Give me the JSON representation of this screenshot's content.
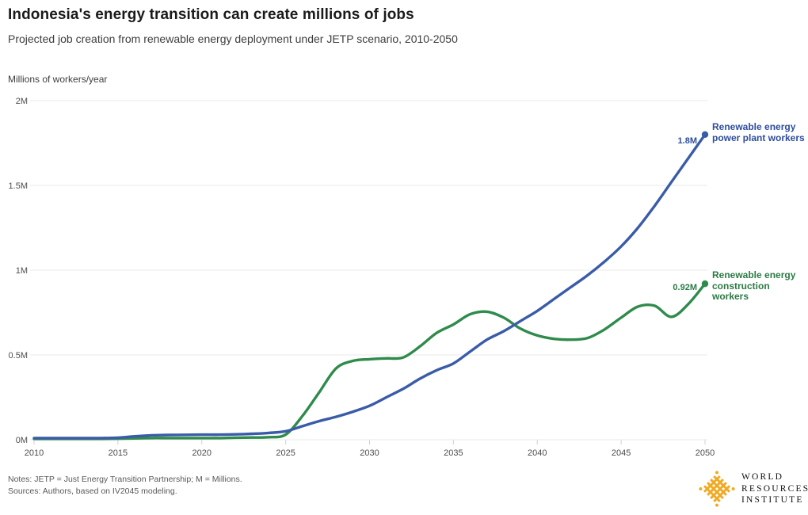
{
  "header": {
    "title": "Indonesia's energy transition can create millions of jobs",
    "subtitle": "Projected job creation from renewable energy deployment under JETP scenario, 2010-2050"
  },
  "chart_data": {
    "type": "line",
    "title": "Indonesia's energy transition can create millions of jobs",
    "subtitle": "Projected job creation from renewable energy deployment under JETP scenario, 2010-2050",
    "unit_label": "Millions of workers/year",
    "xlim": [
      2010,
      2050
    ],
    "ylim": [
      0,
      2
    ],
    "grid": "horizontal",
    "legend_position": "right-of-line-ends",
    "xticks": [
      2010,
      2015,
      2020,
      2025,
      2030,
      2035,
      2040,
      2045,
      2050
    ],
    "yticks": {
      "values": [
        0,
        0.5,
        1,
        1.5,
        2
      ],
      "labels": [
        "0M",
        "0.5M",
        "1M",
        "1.5M",
        "2M"
      ]
    },
    "x": [
      2010,
      2011,
      2012,
      2013,
      2014,
      2015,
      2016,
      2017,
      2018,
      2019,
      2020,
      2021,
      2022,
      2023,
      2024,
      2025,
      2026,
      2027,
      2028,
      2029,
      2030,
      2031,
      2032,
      2033,
      2034,
      2035,
      2036,
      2037,
      2038,
      2039,
      2040,
      2041,
      2042,
      2043,
      2044,
      2045,
      2046,
      2047,
      2048,
      2049,
      2050
    ],
    "series": [
      {
        "name": "Renewable energy power plant workers",
        "label_lines": [
          "Renewable energy",
          "power plant workers"
        ],
        "color": "#3a5ca8",
        "end_label": "1.8M",
        "end_value": 1.8,
        "values": [
          0.01,
          0.01,
          0.01,
          0.01,
          0.01,
          0.012,
          0.02,
          0.026,
          0.028,
          0.029,
          0.03,
          0.03,
          0.032,
          0.035,
          0.04,
          0.05,
          0.08,
          0.11,
          0.135,
          0.165,
          0.2,
          0.25,
          0.3,
          0.36,
          0.41,
          0.45,
          0.52,
          0.59,
          0.64,
          0.7,
          0.76,
          0.83,
          0.9,
          0.97,
          1.05,
          1.14,
          1.25,
          1.38,
          1.52,
          1.66,
          1.8
        ]
      },
      {
        "name": "Renewable energy construction workers",
        "label_lines": [
          "Renewable energy",
          "construction workers"
        ],
        "color": "#2f8b4c",
        "end_label": "0.92M",
        "end_value": 0.92,
        "values": [
          0.005,
          0.005,
          0.005,
          0.005,
          0.005,
          0.006,
          0.008,
          0.01,
          0.01,
          0.01,
          0.01,
          0.01,
          0.012,
          0.013,
          0.015,
          0.03,
          0.14,
          0.28,
          0.42,
          0.465,
          0.475,
          0.48,
          0.485,
          0.55,
          0.63,
          0.68,
          0.74,
          0.755,
          0.72,
          0.655,
          0.615,
          0.595,
          0.59,
          0.6,
          0.65,
          0.72,
          0.785,
          0.79,
          0.725,
          0.8,
          0.92
        ]
      }
    ]
  },
  "footer": {
    "notes": "Notes: JETP = Just Energy Transition Partnership; M = Millions.",
    "sources": "Sources: Authors, based on IV2045 modeling.",
    "logo": {
      "line1": "WORLD",
      "line2": "RESOURCES",
      "line3": "INSTITUTE",
      "color": "#f0ab26"
    }
  },
  "colors": {
    "grid": "#e9e9e9",
    "tick_text": "#4d4d4d",
    "power_text": "#2d4d9e",
    "construction_text": "#2b7a44"
  }
}
